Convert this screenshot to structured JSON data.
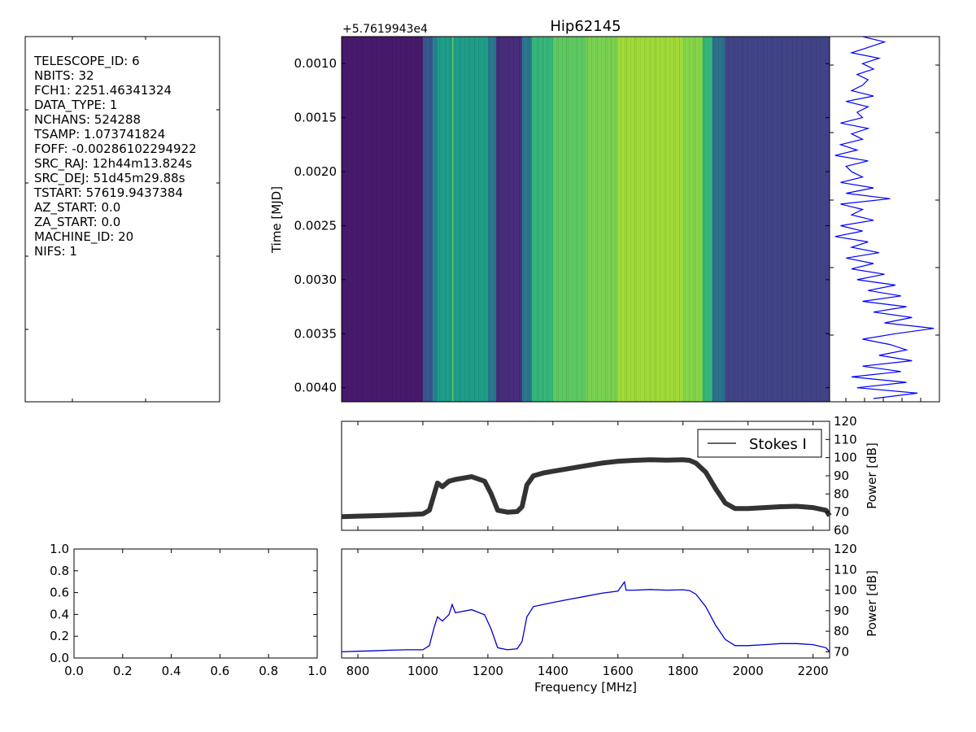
{
  "header_panel": {
    "lines": [
      "TELESCOPE_ID:  6",
      "NBITS:  32",
      "FCH1:  2251.46341324",
      "DATA_TYPE:  1",
      "NCHANS:  524288",
      "TSAMP:  1.073741824",
      "FOFF:  -0.00286102294922",
      "SRC_RAJ:  12h44m13.824s",
      "SRC_DEJ:  51d45m29.88s",
      "TSTART:  57619.9437384",
      "AZ_START:  0.0",
      "ZA_START:  0.0",
      "MACHINE_ID:  20",
      "NIFS:  1"
    ]
  },
  "chart_data": [
    {
      "type": "heatmap",
      "title": "Hip62145",
      "ylabel": "Time [MJD]",
      "offset_label": "+5.7619943e4",
      "x_range": [
        750,
        2251
      ],
      "ylim": [
        0.00413,
        0.00075
      ],
      "yticks": [
        0.001,
        0.0015,
        0.002,
        0.0025,
        0.003,
        0.0035,
        0.004
      ],
      "ytick_labels": [
        "0.0010",
        "0.0015",
        "0.0020",
        "0.0025",
        "0.0030",
        "0.0035",
        "0.0040"
      ],
      "colormap": "viridis",
      "bands": [
        {
          "from": 750,
          "to": 1000,
          "color": "#481a6c"
        },
        {
          "from": 1000,
          "to": 1030,
          "color": "#38588c"
        },
        {
          "from": 1030,
          "to": 1045,
          "color": "#26828e"
        },
        {
          "from": 1045,
          "to": 1200,
          "color": "#1f9e89"
        },
        {
          "from": 1200,
          "to": 1225,
          "color": "#2a788e"
        },
        {
          "from": 1225,
          "to": 1305,
          "color": "#472d7b"
        },
        {
          "from": 1305,
          "to": 1335,
          "color": "#2a788e"
        },
        {
          "from": 1335,
          "to": 1400,
          "color": "#35b779"
        },
        {
          "from": 1400,
          "to": 1500,
          "color": "#5ec962"
        },
        {
          "from": 1500,
          "to": 1600,
          "color": "#7ad151"
        },
        {
          "from": 1600,
          "to": 1800,
          "color": "#a0da39"
        },
        {
          "from": 1800,
          "to": 1860,
          "color": "#86d549"
        },
        {
          "from": 1860,
          "to": 1890,
          "color": "#35b779"
        },
        {
          "from": 1890,
          "to": 1930,
          "color": "#2c728e"
        },
        {
          "from": 1930,
          "to": 2251,
          "color": "#414487"
        }
      ]
    },
    {
      "type": "line",
      "series": [
        {
          "name": "Stokes I"
        }
      ],
      "ylabel": "Power [dB]",
      "ylim": [
        60,
        120
      ],
      "yticks": [
        60,
        70,
        80,
        90,
        100,
        110,
        120
      ],
      "x_range": [
        750,
        2251
      ],
      "color": "#333333",
      "x": [
        750,
        800,
        850,
        900,
        950,
        1000,
        1020,
        1035,
        1045,
        1060,
        1080,
        1100,
        1150,
        1190,
        1210,
        1230,
        1260,
        1290,
        1305,
        1320,
        1340,
        1370,
        1400,
        1450,
        1500,
        1550,
        1600,
        1650,
        1700,
        1750,
        1800,
        1820,
        1840,
        1870,
        1900,
        1930,
        1960,
        2000,
        2050,
        2100,
        2150,
        2200,
        2240,
        2251
      ],
      "y": [
        67.5,
        67.8,
        68,
        68.3,
        68.6,
        69,
        71,
        80,
        86,
        84,
        87,
        88,
        89.5,
        87,
        80,
        71,
        70,
        70.3,
        73,
        85,
        90,
        91.5,
        92.5,
        94,
        95.5,
        97,
        98,
        98.5,
        98.8,
        98.6,
        98.8,
        98.5,
        97,
        92,
        83,
        75,
        72,
        72,
        72.5,
        73,
        73.2,
        72.5,
        71,
        68
      ]
    },
    {
      "type": "line",
      "ylabel": "Power [dB]",
      "xlabel": "Frequency [MHz]",
      "ylim": [
        67,
        120
      ],
      "yticks": [
        70,
        80,
        90,
        100,
        110,
        120
      ],
      "x_range": [
        750,
        2251
      ],
      "xticks": [
        800,
        1000,
        1200,
        1400,
        1600,
        1800,
        2000,
        2200
      ],
      "color": "#0000cc",
      "x": [
        750,
        800,
        850,
        900,
        950,
        1000,
        1020,
        1035,
        1045,
        1060,
        1080,
        1090,
        1100,
        1150,
        1190,
        1210,
        1230,
        1260,
        1290,
        1305,
        1320,
        1340,
        1370,
        1400,
        1450,
        1500,
        1550,
        1600,
        1620,
        1625,
        1650,
        1700,
        1750,
        1800,
        1820,
        1840,
        1870,
        1900,
        1930,
        1960,
        2000,
        2050,
        2100,
        2150,
        2200,
        2240,
        2251
      ],
      "y": [
        70,
        70.3,
        70.5,
        70.8,
        71,
        71,
        73,
        82,
        87,
        85,
        88,
        93,
        89,
        90.5,
        88,
        81,
        72,
        71,
        71.5,
        75,
        87,
        92,
        93,
        94,
        95.5,
        97,
        98.5,
        99.5,
        104,
        100,
        100,
        100.3,
        100,
        100.2,
        99.8,
        98,
        92,
        83,
        76,
        73,
        73,
        73.5,
        74,
        74,
        73.5,
        72,
        70
      ]
    },
    {
      "type": "scatter",
      "xlim": [
        0,
        1
      ],
      "ylim": [
        0,
        1
      ],
      "xtick_labels": [
        "0.0",
        "0.2",
        "0.4",
        "0.6",
        "0.8",
        "1.0"
      ],
      "ytick_labels": [
        "0.0",
        "0.2",
        "0.4",
        "0.6",
        "0.8",
        "1.0"
      ],
      "x": [],
      "y": []
    },
    {
      "type": "line",
      "orientation": "vertical",
      "color": "#0000ff",
      "t_range": [
        0.00075,
        0.00413
      ],
      "p_range": [
        0,
        1
      ],
      "t": [
        0.00075,
        0.0008,
        0.00085,
        0.0009,
        0.00095,
        0.001,
        0.00105,
        0.0011,
        0.00115,
        0.0012,
        0.00125,
        0.0013,
        0.00135,
        0.0014,
        0.00145,
        0.0015,
        0.00155,
        0.0016,
        0.00165,
        0.0017,
        0.00175,
        0.0018,
        0.00185,
        0.0019,
        0.00195,
        0.002,
        0.00205,
        0.0021,
        0.00215,
        0.0022,
        0.00225,
        0.0023,
        0.00235,
        0.0024,
        0.00245,
        0.0025,
        0.00255,
        0.0026,
        0.00265,
        0.0027,
        0.00275,
        0.0028,
        0.00285,
        0.0029,
        0.00295,
        0.003,
        0.00305,
        0.0031,
        0.00315,
        0.0032,
        0.00325,
        0.0033,
        0.00335,
        0.0034,
        0.00345,
        0.0035,
        0.00355,
        0.0036,
        0.00365,
        0.0037,
        0.00375,
        0.0038,
        0.00385,
        0.0039,
        0.00395,
        0.004,
        0.00405,
        0.0041
      ],
      "p": [
        0.3,
        0.5,
        0.35,
        0.2,
        0.45,
        0.3,
        0.4,
        0.25,
        0.35,
        0.3,
        0.2,
        0.4,
        0.15,
        0.35,
        0.25,
        0.3,
        0.1,
        0.35,
        0.2,
        0.3,
        0.1,
        0.25,
        0.05,
        0.35,
        0.15,
        0.2,
        0.3,
        0.1,
        0.4,
        0.15,
        0.55,
        0.1,
        0.3,
        0.2,
        0.4,
        0.1,
        0.3,
        0.05,
        0.35,
        0.2,
        0.45,
        0.15,
        0.4,
        0.2,
        0.5,
        0.25,
        0.6,
        0.35,
        0.65,
        0.3,
        0.7,
        0.4,
        0.75,
        0.5,
        0.95,
        0.6,
        0.3,
        0.55,
        0.7,
        0.45,
        0.75,
        0.3,
        0.65,
        0.2,
        0.7,
        0.25,
        0.8,
        0.4
      ]
    }
  ]
}
